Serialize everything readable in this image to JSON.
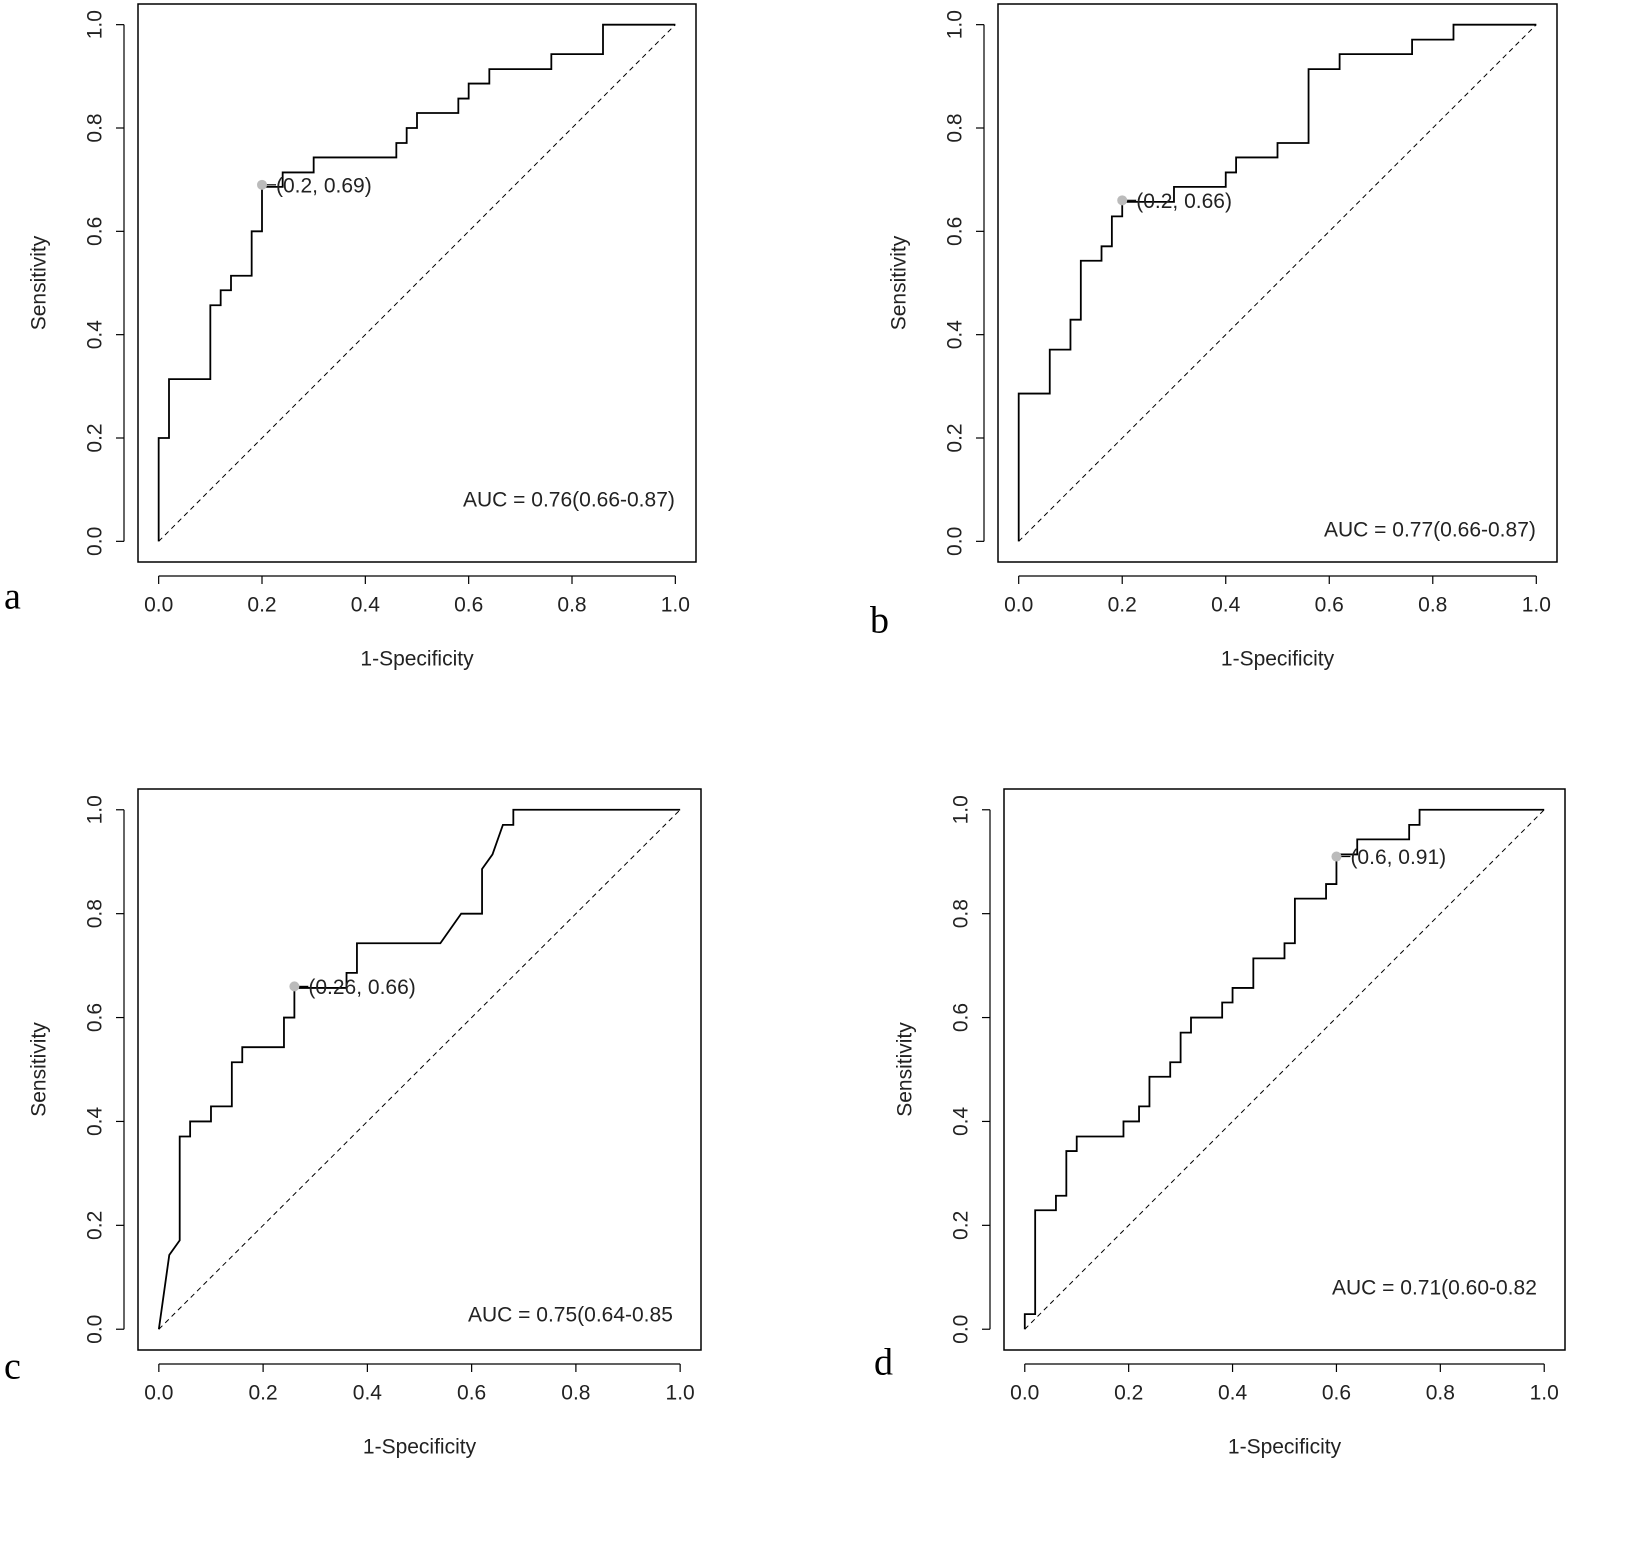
{
  "chart_data": [
    {
      "type": "line",
      "label": "a",
      "xlabel": "1-Specificity",
      "ylabel": "Sensitivity",
      "color": "#000000",
      "x": [
        0,
        0,
        0.02,
        0.02,
        0.1,
        0.1,
        0.12,
        0.12,
        0.14,
        0.14,
        0.18,
        0.18,
        0.2,
        0.2,
        0.24,
        0.24,
        0.3,
        0.3,
        0.46,
        0.46,
        0.48,
        0.48,
        0.5,
        0.5,
        0.58,
        0.58,
        0.6,
        0.6,
        0.64,
        0.64,
        0.76,
        0.76,
        0.86,
        0.86,
        1
      ],
      "values": [
        0,
        0.2,
        0.2,
        0.314,
        0.314,
        0.457,
        0.457,
        0.486,
        0.486,
        0.514,
        0.514,
        0.6,
        0.6,
        0.686,
        0.686,
        0.714,
        0.714,
        0.743,
        0.743,
        0.771,
        0.771,
        0.8,
        0.8,
        0.829,
        0.829,
        0.857,
        0.857,
        0.886,
        0.886,
        0.914,
        0.914,
        0.943,
        0.943,
        1,
        1
      ],
      "cutoff": {
        "x": 0.2,
        "y": 0.69,
        "label": "(0.2, 0.69)",
        "color": "#bbbbbb"
      },
      "annotation": "AUC = 0.76(0.66-0.87)",
      "reference_line": true,
      "xlim": [
        -0.04,
        1.04
      ],
      "ylim": [
        -0.04,
        1.04
      ],
      "xticks": [
        {
          "value": 0,
          "label": "0.0"
        },
        0.2,
        0.4,
        0.6,
        0.8,
        {
          "value": 1,
          "label": "1.0"
        }
      ],
      "yticks": [
        {
          "value": 0,
          "label": "0.0"
        },
        0.2,
        0.4,
        0.6,
        0.8,
        {
          "value": 1,
          "label": "1.0"
        }
      ]
    },
    {
      "type": "line",
      "label": "b",
      "xlabel": "1-Specificity",
      "ylabel": "Sensitivity",
      "color": "#000000",
      "x": [
        0,
        0,
        0.06,
        0.06,
        0.1,
        0.1,
        0.12,
        0.12,
        0.16,
        0.16,
        0.18,
        0.18,
        0.2,
        0.2,
        0.3,
        0.3,
        0.4,
        0.4,
        0.42,
        0.42,
        0.5,
        0.5,
        0.56,
        0.56,
        0.62,
        0.62,
        0.76,
        0.76,
        0.84,
        0.84,
        1
      ],
      "values": [
        0,
        0.286,
        0.286,
        0.371,
        0.371,
        0.429,
        0.429,
        0.543,
        0.543,
        0.571,
        0.571,
        0.629,
        0.629,
        0.657,
        0.657,
        0.686,
        0.686,
        0.714,
        0.714,
        0.743,
        0.743,
        0.771,
        0.771,
        0.914,
        0.914,
        0.943,
        0.943,
        0.971,
        0.971,
        1,
        1
      ],
      "cutoff": {
        "x": 0.2,
        "y": 0.66,
        "label": "(0.2, 0.66)",
        "color": "#bbbbbb"
      },
      "annotation": "AUC = 0.77(0.66-0.87)",
      "reference_line": true,
      "xlim": [
        -0.04,
        1.04
      ],
      "ylim": [
        -0.04,
        1.04
      ],
      "xticks": [
        {
          "value": 0,
          "label": "0.0"
        },
        0.2,
        0.4,
        0.6,
        0.8,
        {
          "value": 1,
          "label": "1.0"
        }
      ],
      "yticks": [
        {
          "value": 0,
          "label": "0.0"
        },
        0.2,
        0.4,
        0.6,
        0.8,
        {
          "value": 1,
          "label": "1.0"
        }
      ]
    },
    {
      "type": "line",
      "label": "c",
      "xlabel": "1-Specificity",
      "ylabel": "Sensitivity",
      "color": "#000000",
      "x": [
        0,
        0.02,
        0.04,
        0.04,
        0.06,
        0.06,
        0.1,
        0.1,
        0.14,
        0.14,
        0.16,
        0.16,
        0.24,
        0.24,
        0.26,
        0.26,
        0.36,
        0.36,
        0.38,
        0.38,
        0.54,
        0.58,
        0.62,
        0.62,
        0.64,
        0.66,
        0.68,
        0.68,
        1
      ],
      "values": [
        0,
        0.143,
        0.171,
        0.371,
        0.371,
        0.4,
        0.4,
        0.429,
        0.429,
        0.514,
        0.514,
        0.543,
        0.543,
        0.6,
        0.6,
        0.657,
        0.657,
        0.686,
        0.686,
        0.743,
        0.743,
        0.8,
        0.8,
        0.886,
        0.914,
        0.971,
        0.971,
        1,
        1
      ],
      "cutoff": {
        "x": 0.26,
        "y": 0.66,
        "label": "(0.26, 0.66)",
        "color": "#bbbbbb"
      },
      "annotation": "AUC = 0.75(0.64-0.85",
      "reference_line": true,
      "xlim": [
        -0.04,
        1.04
      ],
      "ylim": [
        -0.04,
        1.04
      ],
      "xticks": [
        {
          "value": 0,
          "label": "0.0"
        },
        0.2,
        0.4,
        0.6,
        0.8,
        {
          "value": 1,
          "label": "1.0"
        }
      ],
      "yticks": [
        {
          "value": 0,
          "label": "0.0"
        },
        0.2,
        0.4,
        0.6,
        0.8,
        {
          "value": 1,
          "label": "1.0"
        }
      ]
    },
    {
      "type": "line",
      "label": "d",
      "xlabel": "1-Specificity",
      "ylabel": "Sensitivity",
      "color": "#000000",
      "x": [
        0,
        0,
        0.02,
        0.02,
        0.06,
        0.06,
        0.08,
        0.08,
        0.1,
        0.1,
        0.19,
        0.19,
        0.22,
        0.22,
        0.24,
        0.24,
        0.28,
        0.28,
        0.3,
        0.3,
        0.32,
        0.32,
        0.38,
        0.38,
        0.4,
        0.4,
        0.44,
        0.44,
        0.5,
        0.5,
        0.52,
        0.52,
        0.58,
        0.58,
        0.6,
        0.6,
        0.64,
        0.64,
        0.74,
        0.74,
        0.76,
        0.76,
        1
      ],
      "values": [
        0,
        0.029,
        0.029,
        0.229,
        0.229,
        0.257,
        0.257,
        0.343,
        0.343,
        0.371,
        0.371,
        0.4,
        0.4,
        0.429,
        0.429,
        0.486,
        0.486,
        0.514,
        0.514,
        0.571,
        0.571,
        0.6,
        0.6,
        0.629,
        0.629,
        0.657,
        0.657,
        0.714,
        0.714,
        0.743,
        0.743,
        0.829,
        0.829,
        0.857,
        0.857,
        0.914,
        0.914,
        0.943,
        0.943,
        0.971,
        0.971,
        1,
        1
      ],
      "cutoff": {
        "x": 0.6,
        "y": 0.91,
        "label": "(0.6, 0.91)",
        "color": "#bbbbbb"
      },
      "annotation": "AUC = 0.71(0.60-0.82",
      "reference_line": true,
      "xlim": [
        -0.04,
        1.04
      ],
      "ylim": [
        -0.04,
        1.04
      ],
      "xticks": [
        {
          "value": 0,
          "label": "0.0"
        },
        0.2,
        0.4,
        0.6,
        0.8,
        {
          "value": 1,
          "label": "1.0"
        }
      ],
      "yticks": [
        {
          "value": 0,
          "label": "0.0"
        },
        0.2,
        0.4,
        0.6,
        0.8,
        {
          "value": 1,
          "label": "1.0"
        }
      ]
    }
  ]
}
